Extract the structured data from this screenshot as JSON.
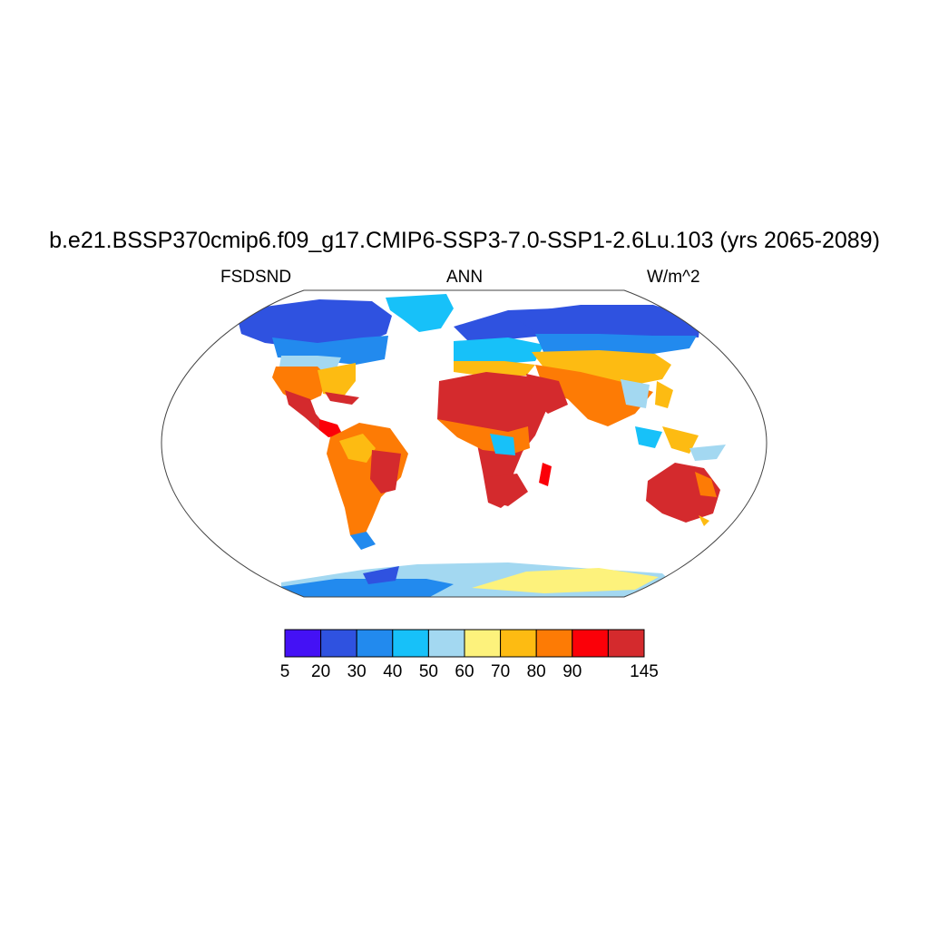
{
  "title": "b.e21.BSSP370cmip6.f09_g17.CMIP6-SSP3-7.0-SSP1-2.6Lu.103 (yrs 2065-2089)",
  "left_label": "FSDSND",
  "center_label": "ANN",
  "right_label": "W/m^2",
  "colorbar": {
    "colors": [
      "#4411f5",
      "#2f52e0",
      "#228aee",
      "#17c1f9",
      "#a3d8f1",
      "#fdf27c",
      "#fdbb12",
      "#fd7b05",
      "#fb0008",
      "#d42a2d"
    ],
    "labels": [
      "5",
      "20",
      "30",
      "40",
      "50",
      "60",
      "70",
      "80",
      "90",
      "145"
    ]
  }
}
